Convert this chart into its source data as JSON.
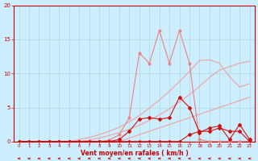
{
  "xlabel": "Vent moyen/en rafales ( km/h )",
  "background_color": "#cceeff",
  "x_values": [
    0,
    1,
    2,
    3,
    4,
    5,
    6,
    7,
    8,
    9,
    10,
    11,
    12,
    13,
    14,
    15,
    16,
    17,
    18,
    19,
    20,
    21,
    22,
    23
  ],
  "straight1_y": [
    0,
    0,
    0,
    0,
    0,
    0,
    0,
    0,
    0,
    0,
    0,
    0.5,
    1.0,
    1.5,
    2.0,
    2.5,
    3.0,
    3.5,
    4.0,
    4.5,
    5.0,
    5.5,
    6.0,
    6.5
  ],
  "straight2_y": [
    0,
    0,
    0,
    0,
    0,
    0,
    0,
    0.2,
    0.5,
    0.9,
    1.3,
    1.8,
    2.4,
    3.1,
    3.9,
    4.8,
    5.8,
    6.9,
    8.1,
    9.4,
    10.5,
    11.0,
    11.5,
    11.8
  ],
  "straight3_y": [
    0,
    0,
    0,
    0,
    0,
    0,
    0.3,
    0.6,
    1.0,
    1.5,
    2.1,
    2.9,
    3.8,
    4.9,
    6.1,
    7.4,
    8.8,
    10.3,
    11.9,
    12.0,
    11.5,
    9.5,
    8.0,
    8.5
  ],
  "jagged1_y": [
    0,
    0,
    0,
    0,
    0,
    0,
    0,
    0,
    0,
    0,
    0.3,
    1.5,
    3.3,
    3.5,
    3.3,
    3.5,
    6.5,
    5.0,
    1.3,
    2.0,
    2.3,
    0.3,
    2.5,
    0.3
  ],
  "jagged2_y": [
    0,
    0,
    0,
    0,
    0,
    0,
    0,
    0,
    0,
    0,
    0,
    0,
    0,
    0,
    0,
    0,
    0,
    1.0,
    1.5,
    1.5,
    2.0,
    1.5,
    1.5,
    0
  ],
  "jagged3_y": [
    0,
    0,
    0,
    0,
    0,
    0,
    0,
    0,
    0,
    0.2,
    1.0,
    3.5,
    13.0,
    11.5,
    16.3,
    11.5,
    16.3,
    11.5,
    0.3,
    0,
    0,
    0,
    0,
    0
  ],
  "ylim": [
    0,
    20
  ],
  "xlim": [
    0,
    23
  ]
}
